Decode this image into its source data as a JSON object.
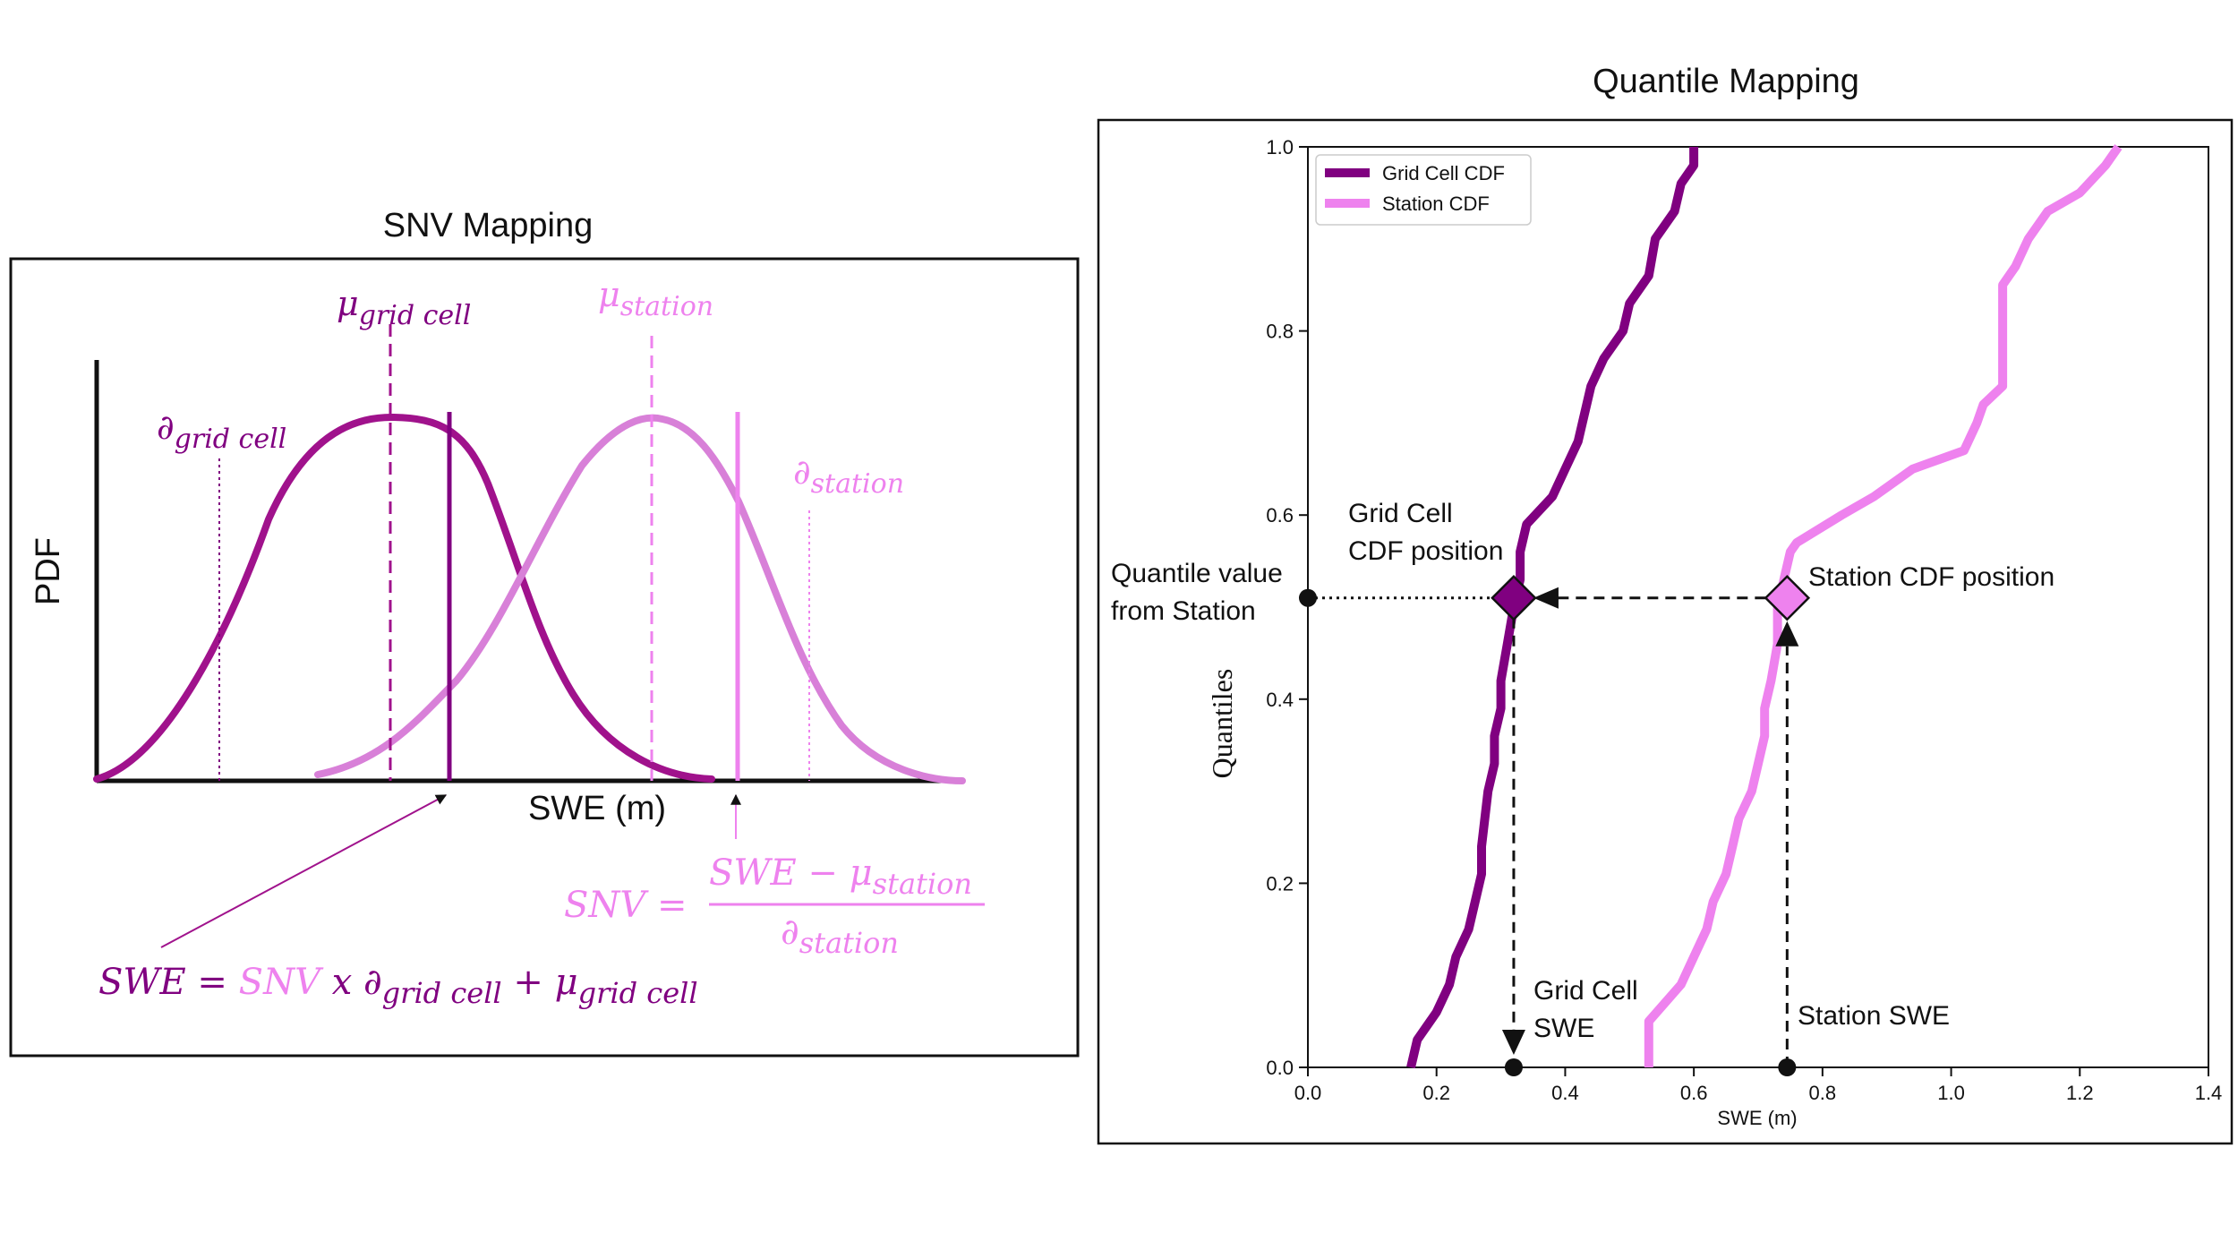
{
  "colors": {
    "dark": "#800080",
    "light": "#EE82EE",
    "snv_dark": "#A0128C",
    "ink": "#111111"
  },
  "snv_panel": {
    "title": "SNV Mapping",
    "y_axis_label": "PDF",
    "x_axis_label": "SWE (m)",
    "mu_grid_label": {
      "base": "μ",
      "sub": "grid cell"
    },
    "mu_station_label": {
      "base": "μ",
      "sub": "station"
    },
    "d_grid_label": {
      "base": "∂",
      "sub": "grid cell"
    },
    "d_station_label": {
      "base": "∂",
      "sub": "station"
    },
    "snv_formula": {
      "lhs": "SNV =",
      "num_a": "SWE − μ",
      "num_sub": "station",
      "den_a": "∂",
      "den_sub": "station"
    },
    "swe_formula": {
      "lhs": "SWE =",
      "snv": "SNV",
      "x": "x ∂",
      "sub1": "grid cell",
      "plus": "+ μ",
      "sub2": "grid cell"
    }
  },
  "qm_panel": {
    "title": "Quantile Mapping",
    "y_axis_label": "Quantiles",
    "x_axis_label": "SWE (m)",
    "x_ticks": [
      "0.0",
      "0.2",
      "0.4",
      "0.6",
      "0.8",
      "1.0",
      "1.2",
      "1.4"
    ],
    "y_ticks": [
      "0.0",
      "0.2",
      "0.4",
      "0.6",
      "0.8",
      "1.0"
    ],
    "legend": [
      "Grid Cell CDF",
      "Station CDF"
    ],
    "annotations": {
      "quantile_value": [
        "Quantile value",
        "from Station"
      ],
      "grid_cdf_position": [
        "Grid Cell",
        "CDF position"
      ],
      "station_cdf_position": "Station CDF position",
      "grid_swe": [
        "Grid Cell",
        "SWE"
      ],
      "station_swe": "Station SWE"
    }
  },
  "chart_data": {
    "type": "line",
    "title": "Quantile Mapping",
    "xlabel": "SWE (m)",
    "ylabel": "Quantiles",
    "xlim": [
      0.0,
      1.4
    ],
    "ylim": [
      0.0,
      1.0
    ],
    "grid": false,
    "legend_position": "top-left",
    "series": [
      {
        "name": "Grid Cell CDF",
        "x": [
          0.16,
          0.17,
          0.2,
          0.22,
          0.23,
          0.25,
          0.26,
          0.27,
          0.27,
          0.28,
          0.29,
          0.29,
          0.3,
          0.3,
          0.31,
          0.32,
          0.33,
          0.33,
          0.34,
          0.38,
          0.4,
          0.42,
          0.43,
          0.44,
          0.46,
          0.49,
          0.5,
          0.53,
          0.54,
          0.57,
          0.58,
          0.6,
          0.6
        ],
        "y": [
          0.0,
          0.03,
          0.06,
          0.09,
          0.12,
          0.15,
          0.18,
          0.21,
          0.24,
          0.3,
          0.33,
          0.36,
          0.39,
          0.42,
          0.46,
          0.5,
          0.53,
          0.56,
          0.59,
          0.62,
          0.65,
          0.68,
          0.71,
          0.74,
          0.77,
          0.8,
          0.83,
          0.86,
          0.9,
          0.93,
          0.96,
          0.98,
          1.0
        ]
      },
      {
        "name": "Station CDF",
        "x": [
          0.53,
          0.53,
          0.58,
          0.6,
          0.62,
          0.63,
          0.65,
          0.66,
          0.67,
          0.69,
          0.7,
          0.71,
          0.71,
          0.72,
          0.73,
          0.73,
          0.74,
          0.75,
          0.76,
          0.83,
          0.88,
          0.94,
          1.02,
          1.04,
          1.05,
          1.08,
          1.08,
          1.1,
          1.12,
          1.15,
          1.2,
          1.24,
          1.26,
          1.26
        ],
        "y": [
          0.0,
          0.05,
          0.09,
          0.12,
          0.15,
          0.18,
          0.21,
          0.24,
          0.27,
          0.3,
          0.33,
          0.36,
          0.39,
          0.42,
          0.46,
          0.5,
          0.53,
          0.56,
          0.57,
          0.6,
          0.62,
          0.65,
          0.67,
          0.7,
          0.72,
          0.74,
          0.85,
          0.87,
          0.9,
          0.93,
          0.95,
          0.98,
          1.0,
          1.0
        ]
      }
    ],
    "points": {
      "quantile_from_station": {
        "x": 0.0,
        "y": 0.51
      },
      "grid_cdf_position": {
        "x": 0.32,
        "y": 0.51
      },
      "station_cdf_position": {
        "x": 0.745,
        "y": 0.51
      },
      "grid_swe": {
        "x": 0.32,
        "y": 0.0
      },
      "station_swe": {
        "x": 0.745,
        "y": 0.0
      }
    }
  }
}
